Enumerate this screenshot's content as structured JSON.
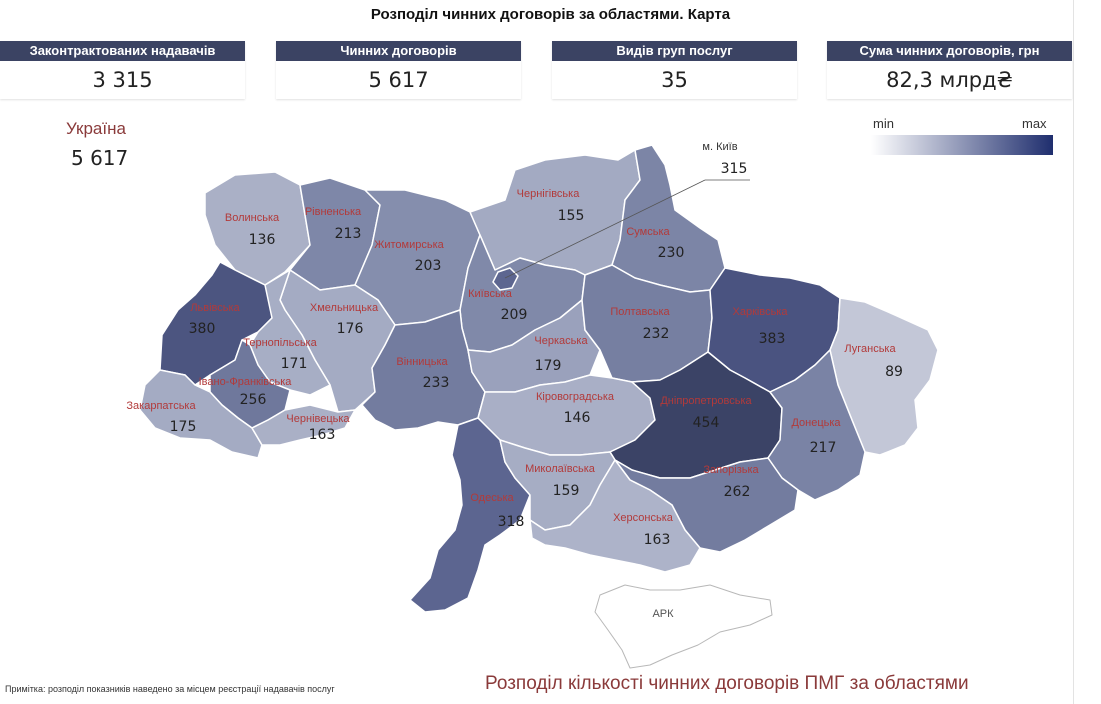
{
  "title": "Розподіл чинних договорів за областями. Карта",
  "kpis": [
    {
      "label": "Законтрактованих надавачів",
      "value": "3 315"
    },
    {
      "label": "Чинних договорів",
      "value": "5 617"
    },
    {
      "label": "Видів груп послуг",
      "value": "35"
    },
    {
      "label": "Сума чинних договорів, грн",
      "value": "82,3 млрд₴"
    }
  ],
  "country": {
    "label": "Україна",
    "value": "5 617"
  },
  "legend": {
    "min": "min",
    "max": "max",
    "min_color": "#ffffff",
    "max_color": "#1f2e6e"
  },
  "regions": [
    {
      "name": "Волинська",
      "value": "136"
    },
    {
      "name": "Рівненська",
      "value": "213"
    },
    {
      "name": "Житомирська",
      "value": "203"
    },
    {
      "name": "Чернігівська",
      "value": "155"
    },
    {
      "name": "Сумська",
      "value": "230"
    },
    {
      "name": "Київська",
      "value": "209"
    },
    {
      "name": "м. Київ",
      "value": "315"
    },
    {
      "name": "Львівська",
      "value": "380"
    },
    {
      "name": "Хмельницька",
      "value": "176"
    },
    {
      "name": "Тернопільська",
      "value": "171"
    },
    {
      "name": "Івано-Франківська",
      "value": "256"
    },
    {
      "name": "Закарпатська",
      "value": "175"
    },
    {
      "name": "Чернівецька",
      "value": "163"
    },
    {
      "name": "Вінницька",
      "value": "233"
    },
    {
      "name": "Черкаська",
      "value": "179"
    },
    {
      "name": "Полтавська",
      "value": "232"
    },
    {
      "name": "Харківська",
      "value": "383"
    },
    {
      "name": "Луганська",
      "value": "89"
    },
    {
      "name": "Кіровоградська",
      "value": "146"
    },
    {
      "name": "Дніпропетровська",
      "value": "454"
    },
    {
      "name": "Донецька",
      "value": "217"
    },
    {
      "name": "Одеська",
      "value": "318"
    },
    {
      "name": "Миколаївська",
      "value": "159"
    },
    {
      "name": "Запорізька",
      "value": "262"
    },
    {
      "name": "Херсонська",
      "value": "163"
    },
    {
      "name": "АРК",
      "value": ""
    }
  ],
  "subtitle": "Розподіл кількості чинних договорів ПМГ за областями",
  "footnote": "Примітка: розподіл показників наведено за місцем реєстрації надавачів послуг"
}
